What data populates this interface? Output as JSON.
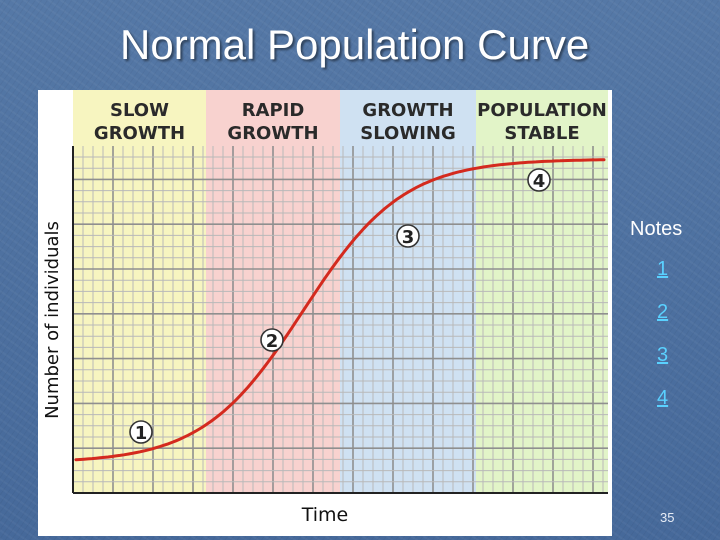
{
  "slide": {
    "title": "Normal Population Curve",
    "page_number": "35"
  },
  "figure": {
    "phases": [
      {
        "line1": "SLOW",
        "line2": "GROWTH",
        "color": "#f7f5c0"
      },
      {
        "line1": "RAPID",
        "line2": "GROWTH",
        "color": "#f8d2cf"
      },
      {
        "line1": "GROWTH",
        "line2": "SLOWING",
        "color": "#cfe1f2"
      },
      {
        "line1": "POPULATION",
        "line2": "STABLE",
        "color": "#e2f4c8"
      }
    ],
    "y_axis_label": "Number of individuals",
    "x_axis_label": "Time",
    "curve_color": "#d42a1e",
    "markers": [
      "1",
      "2",
      "3",
      "4"
    ]
  },
  "notes": {
    "heading": "Notes",
    "links": [
      "1",
      "2",
      "3",
      "4"
    ]
  }
}
